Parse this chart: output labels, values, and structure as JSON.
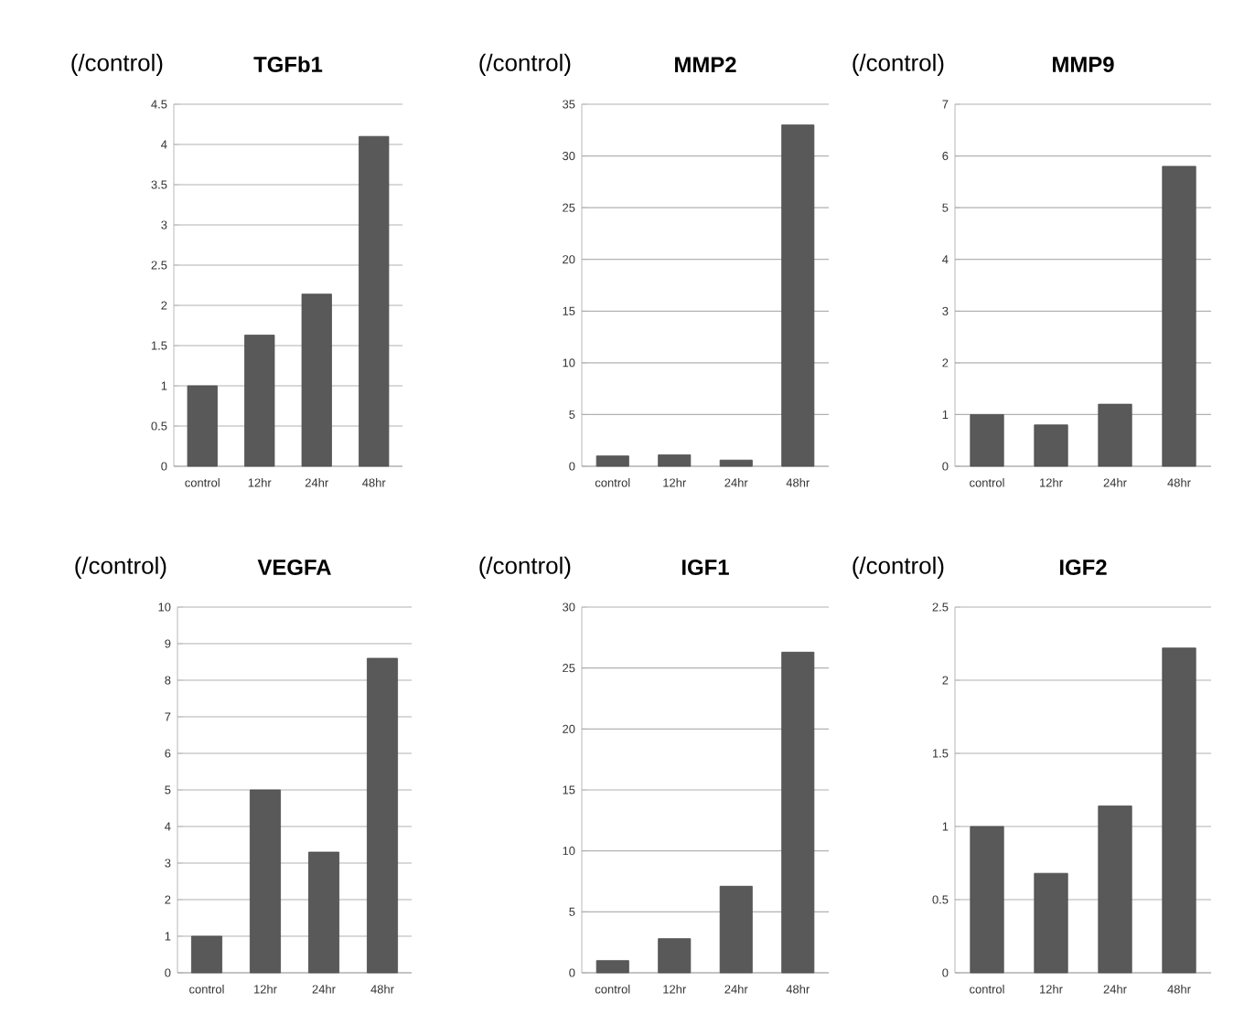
{
  "chart_data": [
    {
      "type": "bar",
      "title": "TGFb1",
      "ylabel": "(/control)",
      "categories": [
        "control",
        "12hr",
        "24hr",
        "48hr"
      ],
      "values": [
        1,
        1.63,
        2.14,
        4.1
      ],
      "color": "#595959",
      "ylim": [
        0,
        4.5
      ],
      "yticks": [
        0,
        0.5,
        1,
        1.5,
        2,
        2.5,
        3,
        3.5,
        4,
        4.5
      ],
      "grid": "y"
    },
    {
      "type": "bar",
      "title": "MMP2",
      "ylabel": "(/control)",
      "categories": [
        "control",
        "12hr",
        "24hr",
        "48hr"
      ],
      "values": [
        1,
        1.1,
        0.6,
        33
      ],
      "color": "#595959",
      "ylim": [
        0,
        35
      ],
      "yticks": [
        0,
        5,
        10,
        15,
        20,
        25,
        30,
        35
      ],
      "grid": "y"
    },
    {
      "type": "bar",
      "title": "MMP9",
      "ylabel": "(/control)",
      "categories": [
        "control",
        "12hr",
        "24hr",
        "48hr"
      ],
      "values": [
        1,
        0.8,
        1.2,
        5.8
      ],
      "color": "#595959",
      "ylim": [
        0,
        7
      ],
      "yticks": [
        0,
        1,
        2,
        3,
        4,
        5,
        6,
        7
      ],
      "grid": "y"
    },
    {
      "type": "bar",
      "title": "VEGFA",
      "ylabel": "(/control)",
      "categories": [
        "control",
        "12hr",
        "24hr",
        "48hr"
      ],
      "values": [
        1,
        5,
        3.3,
        8.6
      ],
      "color": "#595959",
      "ylim": [
        0,
        10
      ],
      "yticks": [
        0,
        1,
        2,
        3,
        4,
        5,
        6,
        7,
        8,
        9,
        10
      ],
      "grid": "y"
    },
    {
      "type": "bar",
      "title": "IGF1",
      "ylabel": "(/control)",
      "categories": [
        "control",
        "12hr",
        "24hr",
        "48hr"
      ],
      "values": [
        1,
        2.8,
        7.1,
        26.3
      ],
      "color": "#595959",
      "ylim": [
        0,
        30
      ],
      "yticks": [
        0,
        5,
        10,
        15,
        20,
        25,
        30
      ],
      "grid": "y"
    },
    {
      "type": "bar",
      "title": "IGF2",
      "ylabel": "(/control)",
      "categories": [
        "control",
        "12hr",
        "24hr",
        "48hr"
      ],
      "values": [
        1,
        0.68,
        1.14,
        2.22
      ],
      "color": "#595959",
      "ylim": [
        0,
        2.5
      ],
      "yticks": [
        0,
        0.5,
        1,
        1.5,
        2,
        2.5
      ],
      "grid": "y"
    }
  ]
}
